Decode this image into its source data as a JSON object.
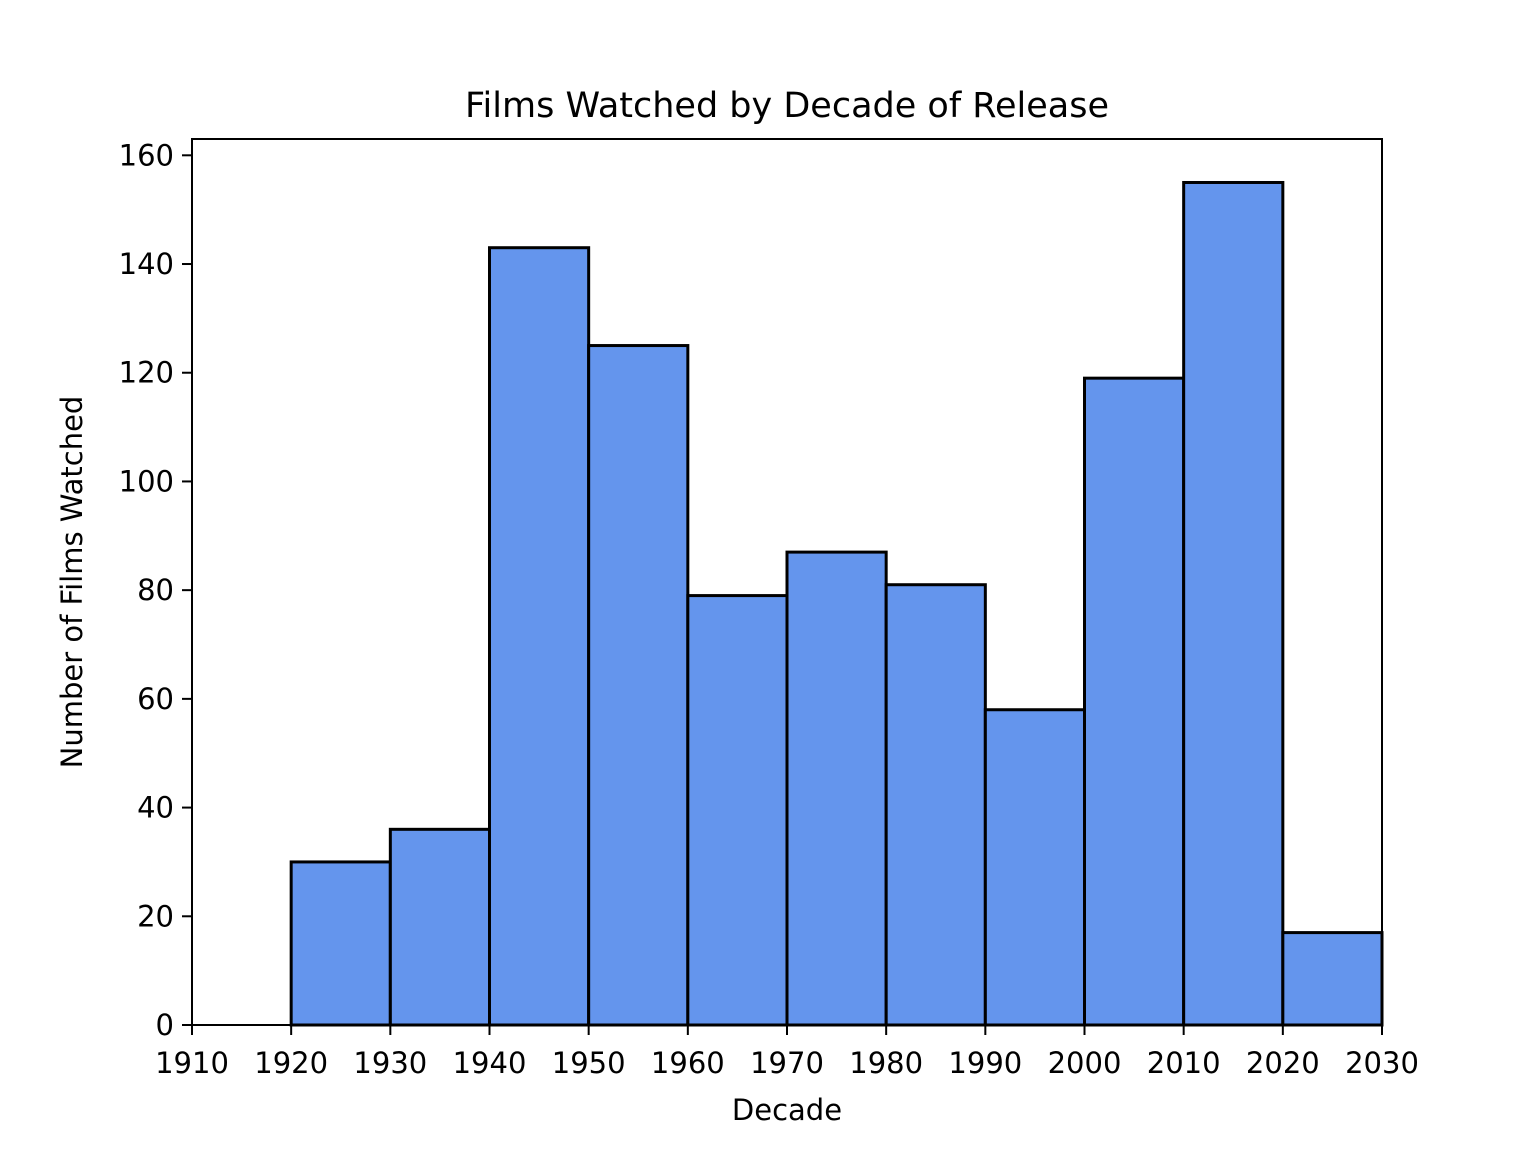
{
  "chart_data": {
    "type": "bar",
    "subtype": "histogram",
    "title": "Films Watched by Decade of Release",
    "xlabel": "Decade",
    "ylabel": "Number of Films Watched",
    "bin_edges": [
      1920,
      1930,
      1940,
      1950,
      1960,
      1970,
      1980,
      1990,
      2000,
      2010,
      2020,
      2030
    ],
    "values": [
      30,
      36,
      143,
      125,
      79,
      87,
      81,
      58,
      119,
      155,
      17
    ],
    "xlim": [
      1910,
      2030
    ],
    "ylim": [
      0,
      163
    ],
    "xticks": [
      "1910",
      "1920",
      "1930",
      "1940",
      "1950",
      "1960",
      "1970",
      "1980",
      "1990",
      "2000",
      "2010",
      "2020",
      "2030"
    ],
    "yticks": [
      "0",
      "20",
      "40",
      "60",
      "80",
      "100",
      "120",
      "140",
      "160"
    ],
    "bar_color": "#6495ED",
    "edge_color": "#000000",
    "grid": false,
    "legend": "none"
  }
}
